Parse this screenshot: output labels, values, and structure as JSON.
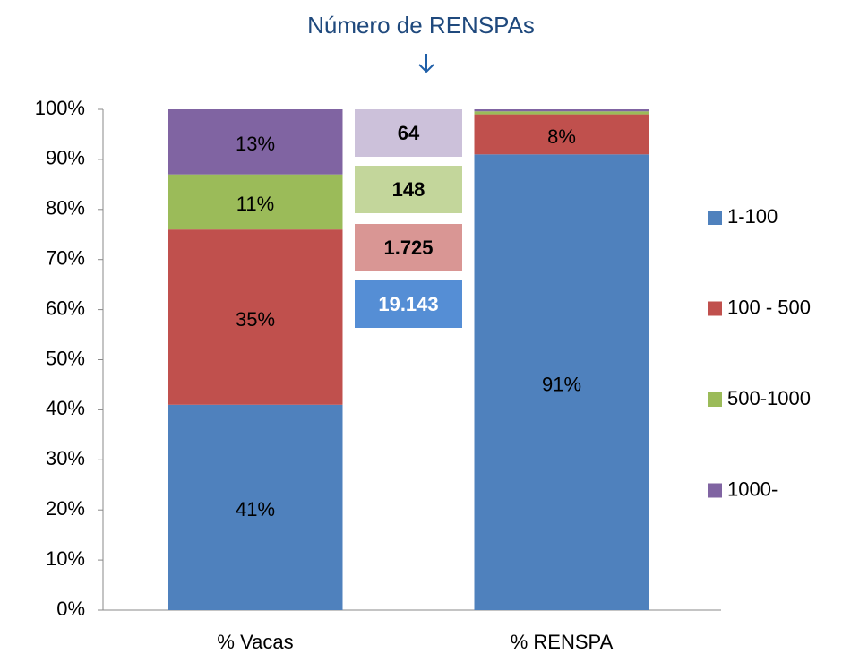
{
  "chart_data": {
    "type": "stacked_bar",
    "title": "Número de RENSPAs",
    "categories": [
      "% Vacas",
      "% RENSPA"
    ],
    "series": [
      {
        "name": "1-100",
        "color": "#4f81bd",
        "values": [
          41,
          91
        ],
        "value_labels": [
          "41%",
          "91%"
        ]
      },
      {
        "name": "100 - 500",
        "color": "#c0504d",
        "values": [
          35,
          8
        ],
        "value_labels": [
          "35%",
          "8%"
        ]
      },
      {
        "name": "500-1000",
        "color": "#9bbb59",
        "values": [
          11,
          0.6
        ],
        "value_labels": [
          "11%",
          null
        ]
      },
      {
        "name": "1000-",
        "color": "#8064a2",
        "values": [
          13,
          0.4
        ],
        "value_labels": [
          "13%",
          null
        ]
      }
    ],
    "annotations": [
      {
        "text": "19.143",
        "color": "#558ed5",
        "text_color": "#ffffff"
      },
      {
        "text": "1.725",
        "color": "#d99694",
        "text_color": "#000000"
      },
      {
        "text": "148",
        "color": "#c3d69b",
        "text_color": "#000000"
      },
      {
        "text": "64",
        "color": "#ccc1da",
        "text_color": "#000000"
      }
    ],
    "ylim": [
      0,
      100
    ],
    "yticks": [
      {
        "value": 0,
        "label": "0%"
      },
      {
        "value": 10,
        "label": "10%"
      },
      {
        "value": 20,
        "label": "20%"
      },
      {
        "value": 30,
        "label": "30%"
      },
      {
        "value": 40,
        "label": "40%"
      },
      {
        "value": 50,
        "label": "50%"
      },
      {
        "value": 60,
        "label": "60%"
      },
      {
        "value": 70,
        "label": "70%"
      },
      {
        "value": 80,
        "label": "80%"
      },
      {
        "value": 90,
        "label": "90%"
      },
      {
        "value": 100,
        "label": "100%"
      }
    ],
    "grid": false,
    "legend": "right"
  }
}
